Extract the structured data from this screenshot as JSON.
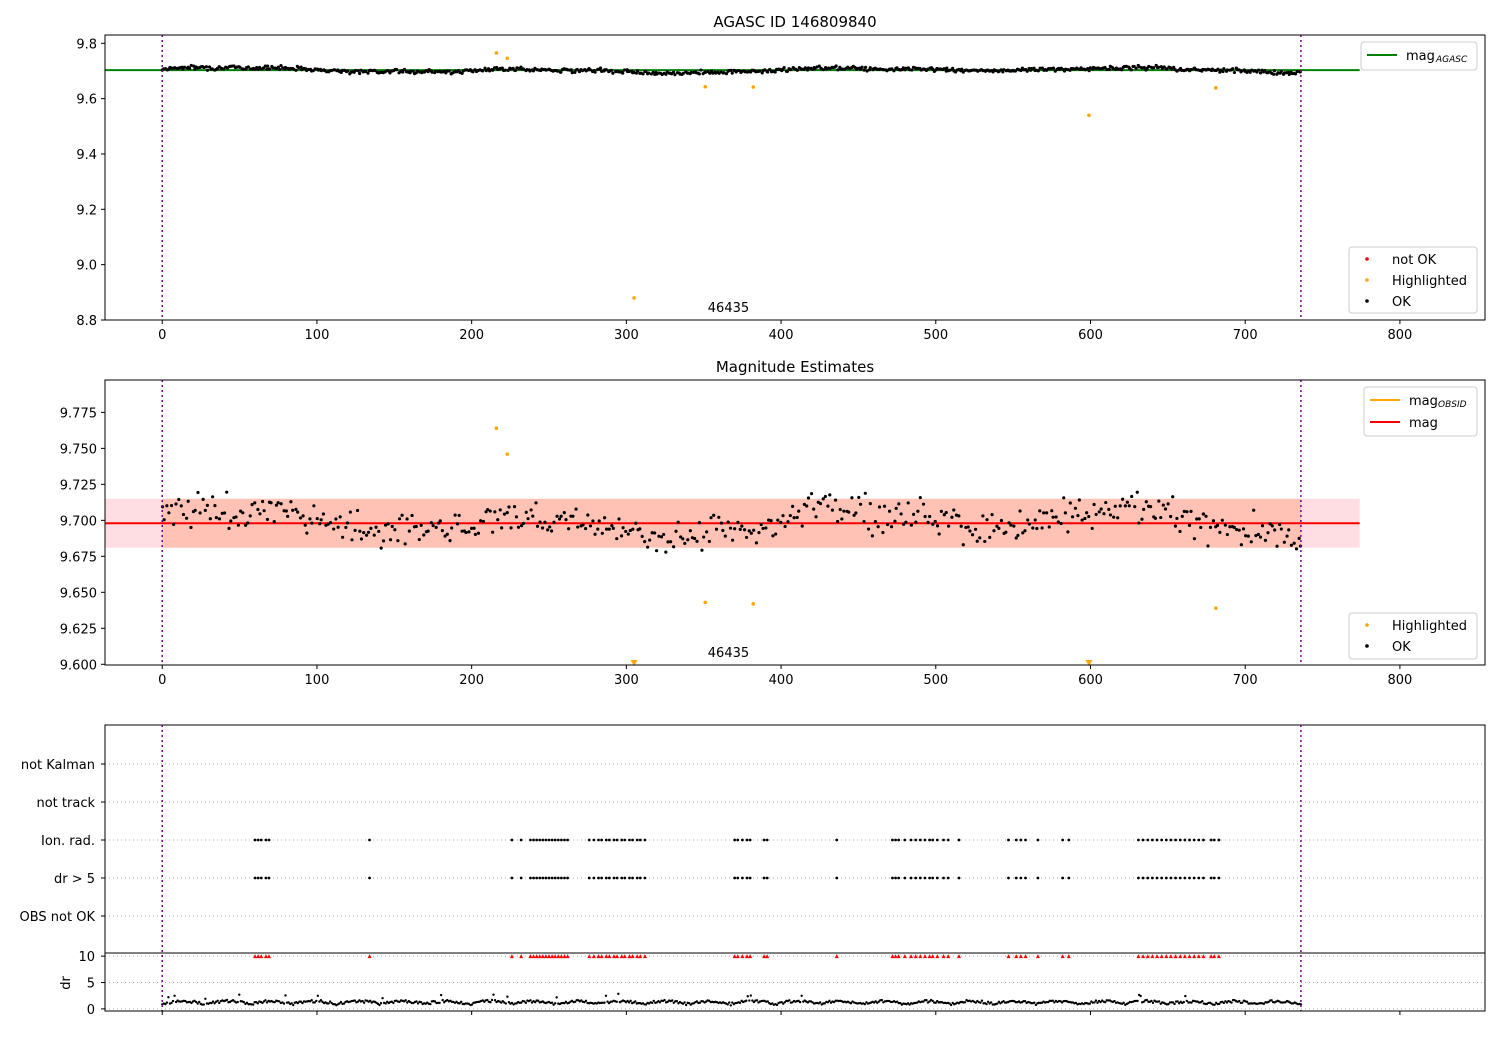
{
  "chart_data": [
    {
      "type": "scatter",
      "title": "AGASC ID 146809840",
      "annotation": "46435",
      "xlim": [
        -37,
        855
      ],
      "ylim": [
        8.8,
        9.83
      ],
      "xticks": [
        "0",
        "100",
        "200",
        "300",
        "400",
        "500",
        "600",
        "700",
        "800"
      ],
      "yticks": [
        "9.8",
        "9.6",
        "9.4",
        "9.2",
        "9.0",
        "8.8"
      ],
      "reference_line": {
        "label": "mag",
        "label_sub": "AGASC",
        "value": 9.703,
        "x_range": [
          -37,
          774
        ],
        "color": "#008000"
      },
      "obs_bounds": [
        0,
        736
      ],
      "ok_series": {
        "name": "OK",
        "color": "#000000",
        "x_range": [
          0,
          736
        ],
        "n": 700,
        "base": 9.703,
        "amplitude": 0.012,
        "scatter": 0.008
      },
      "highlighted": {
        "name": "Highlighted",
        "color": "#ffa500",
        "points": [
          [
            216,
            9.765
          ],
          [
            223,
            9.746
          ],
          [
            305,
            8.88
          ],
          [
            351,
            9.643
          ],
          [
            382,
            9.642
          ],
          [
            599,
            9.54
          ],
          [
            681,
            9.639
          ]
        ]
      },
      "not_ok": {
        "name": "not OK",
        "color": "#ff0000",
        "points": []
      },
      "legend_upper": [
        {
          "label": "mag",
          "sub": "AGASC",
          "color": "#008000"
        }
      ],
      "legend_lower": [
        {
          "label": "not OK",
          "color": "#ff0000"
        },
        {
          "label": "Highlighted",
          "color": "#ffa500"
        },
        {
          "label": "OK",
          "color": "#000000"
        }
      ]
    },
    {
      "type": "scatter",
      "title": "Magnitude Estimates",
      "annotation": "46435",
      "xlim": [
        -37,
        855
      ],
      "ylim": [
        9.5995,
        9.7975
      ],
      "xticks": [
        "0",
        "100",
        "200",
        "300",
        "400",
        "500",
        "600",
        "700",
        "800"
      ],
      "yticks": [
        "9.775",
        "9.750",
        "9.725",
        "9.700",
        "9.675",
        "9.650",
        "9.625",
        "9.600"
      ],
      "mag": {
        "label": "mag",
        "value": 9.698,
        "color": "#ff0000"
      },
      "mag_obsid": {
        "label": "mag",
        "sub": "OBSID",
        "color": "#ffa500"
      },
      "band": {
        "low": 9.681,
        "high": 9.715,
        "x_range": [
          -37,
          774
        ]
      },
      "obs_bounds": [
        0,
        736
      ],
      "ok_series": {
        "name": "OK",
        "color": "#000000",
        "x_range": [
          0,
          736
        ],
        "n": 480,
        "base": 9.698,
        "amplitude": 0.014,
        "scatter": 0.013
      },
      "highlighted": {
        "name": "Highlighted",
        "color": "#ffa500",
        "points": [
          [
            216,
            9.764
          ],
          [
            223,
            9.746
          ],
          [
            351,
            9.643
          ],
          [
            382,
            9.642
          ],
          [
            681,
            9.639
          ]
        ],
        "clipped_x": [
          305,
          599
        ]
      },
      "legend_upper": [
        {
          "label": "mag",
          "sub": "OBSID",
          "color": "#ffa500"
        },
        {
          "label": "mag",
          "color": "#ff0000"
        }
      ],
      "legend_lower": [
        {
          "label": "Highlighted",
          "color": "#ffa500"
        },
        {
          "label": "OK",
          "color": "#000000"
        }
      ]
    },
    {
      "type": "scatter",
      "title": "",
      "xlim": [
        -37,
        855
      ],
      "categories": [
        "not Kalman",
        "not track",
        "Ion. rad.",
        "dr > 5",
        "OBS not OK"
      ],
      "flag_x": [
        60,
        62,
        64,
        67,
        69,
        134,
        226,
        232,
        238,
        240,
        242,
        244,
        246,
        248,
        250,
        252,
        254,
        256,
        258,
        260,
        262,
        276,
        279,
        282,
        284,
        287,
        289,
        292,
        294,
        297,
        299,
        302,
        304,
        307,
        309,
        312,
        370,
        372,
        375,
        378,
        380,
        389,
        391,
        436,
        472,
        474,
        476,
        480,
        484,
        487,
        490,
        493,
        496,
        498,
        501,
        505,
        508,
        515,
        547,
        552,
        555,
        558,
        566,
        582,
        586,
        631,
        634,
        637,
        640,
        643,
        646,
        649,
        652,
        655,
        658,
        661,
        664,
        667,
        670,
        673,
        678,
        680,
        683
      ],
      "dr": {
        "ylabel": "dr",
        "yticks": [
          "10",
          "5",
          "0"
        ],
        "ylim": [
          -0.4,
          10.6
        ],
        "capped_value": 10,
        "baseline": 0.9
      },
      "obs_bounds": [
        0,
        736
      ]
    }
  ]
}
